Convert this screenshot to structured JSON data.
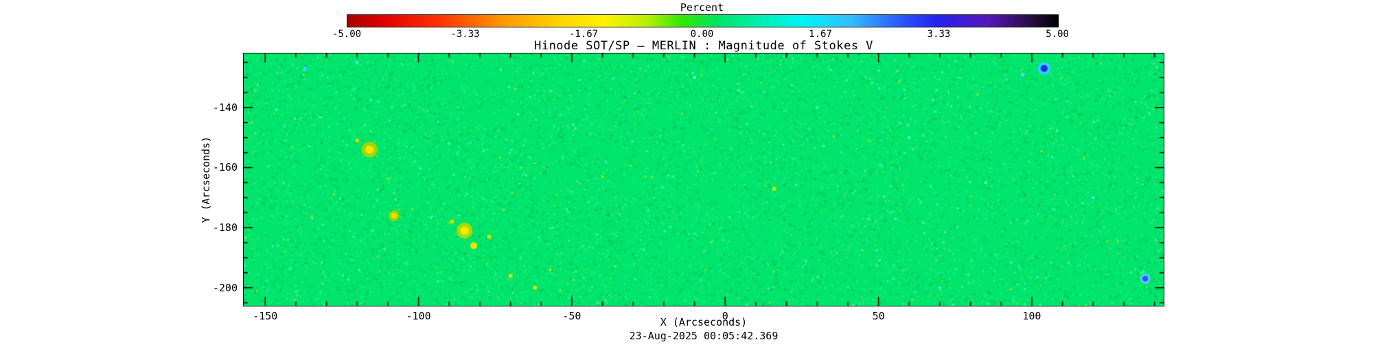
{
  "footer": {
    "timestamp": "23-Aug-2025 00:05:42.369"
  },
  "chart_data": {
    "type": "heatmap",
    "title": "Hinode SOT/SP — MERLIN : Magnitude of Stokes V",
    "xlabel": "X (Arcseconds)",
    "ylabel": "Y (Arcseconds)",
    "xlim": [
      -157,
      143
    ],
    "ylim": [
      -206,
      -122
    ],
    "x_ticks": [
      -150,
      -100,
      -50,
      0,
      50,
      100
    ],
    "y_ticks": [
      -140,
      -160,
      -180,
      -200
    ],
    "x_minor_step": 10,
    "y_minor_step": 5,
    "grid": false,
    "legend": "none",
    "colorbar": {
      "label": "Percent",
      "min": -5.0,
      "max": 5.0,
      "ticks": [
        "-5.00",
        "-3.33",
        "-1.67",
        "0.00",
        "1.67",
        "3.33",
        "5.00"
      ],
      "position": "top",
      "gradient": [
        {
          "pos": 0.0,
          "color": "#aa0000"
        },
        {
          "pos": 0.05,
          "color": "#dd0000"
        },
        {
          "pos": 0.13,
          "color": "#ff3300"
        },
        {
          "pos": 0.22,
          "color": "#ff9900"
        },
        {
          "pos": 0.3,
          "color": "#ffd500"
        },
        {
          "pos": 0.36,
          "color": "#fff200"
        },
        {
          "pos": 0.42,
          "color": "#baf000"
        },
        {
          "pos": 0.47,
          "color": "#33e800"
        },
        {
          "pos": 0.52,
          "color": "#00e566"
        },
        {
          "pos": 0.58,
          "color": "#00efae"
        },
        {
          "pos": 0.64,
          "color": "#00f5f5"
        },
        {
          "pos": 0.71,
          "color": "#33bbff"
        },
        {
          "pos": 0.78,
          "color": "#2b55ff"
        },
        {
          "pos": 0.83,
          "color": "#2222ee"
        },
        {
          "pos": 0.9,
          "color": "#5518b8"
        },
        {
          "pos": 0.96,
          "color": "#2a0d45"
        },
        {
          "pos": 1.0,
          "color": "#000000"
        }
      ]
    },
    "base_value_percent": 0.0,
    "base_color": "#00e56b",
    "noise_palette": [
      {
        "color": "rgba(0,198,84,0.50)",
        "weight": 0.4
      },
      {
        "color": "rgba(46,243,139,0.50)",
        "weight": 0.33
      },
      {
        "color": "rgba(0,166,96,0.40)",
        "weight": 0.12
      },
      {
        "color": "rgba(130,228,60,0.35)",
        "weight": 0.08
      },
      {
        "color": "rgba(110,250,225,0.50)",
        "weight": 0.05
      },
      {
        "color": "rgba(255,238,0,0.40)",
        "weight": 0.02
      }
    ],
    "features": [
      {
        "x": -116,
        "y": -154,
        "r": 6,
        "color": "#f5e400",
        "halo": "#9ed800"
      },
      {
        "x": -120,
        "y": -151,
        "r": 3,
        "color": "#cfe300"
      },
      {
        "x": -108,
        "y": -176,
        "r": 4,
        "color": "#e8e000",
        "halo": "#9ed800"
      },
      {
        "x": -85,
        "y": -181,
        "r": 6,
        "color": "#f7ea00",
        "halo": "#aadc00"
      },
      {
        "x": -82,
        "y": -186,
        "r": 5,
        "color": "#f0e400"
      },
      {
        "x": -77,
        "y": -183,
        "r": 3,
        "color": "#d8e000"
      },
      {
        "x": -89,
        "y": -178,
        "r": 3,
        "color": "#cfe000"
      },
      {
        "x": -70,
        "y": -196,
        "r": 3,
        "color": "#dce300"
      },
      {
        "x": -62,
        "y": -200,
        "r": 3,
        "color": "#e4e600"
      },
      {
        "x": -57,
        "y": -194,
        "r": 2,
        "color": "#c8e000"
      },
      {
        "x": 16,
        "y": -167,
        "r": 3,
        "color": "#c8e800"
      },
      {
        "x": -40,
        "y": -163,
        "r": 2,
        "color": "#bae000"
      },
      {
        "x": 104,
        "y": -127,
        "r": 5,
        "color": "#1133ee",
        "halo": "#33ccff"
      },
      {
        "x": 97,
        "y": -129,
        "r": 3,
        "color": "#44ddff"
      },
      {
        "x": -137,
        "y": -127,
        "r": 3,
        "color": "#44ccff"
      },
      {
        "x": -120,
        "y": -125,
        "r": 2,
        "color": "#66e8ff"
      },
      {
        "x": 137,
        "y": -197,
        "r": 4,
        "color": "#2255ff",
        "halo": "#55ccee"
      },
      {
        "x": 60,
        "y": -150,
        "r": 2,
        "color": "#66ffe0"
      },
      {
        "x": 85,
        "y": -165,
        "r": 2,
        "color": "#66ffe0"
      },
      {
        "x": 30,
        "y": -140,
        "r": 2,
        "color": "#55f0d0"
      },
      {
        "x": -10,
        "y": -130,
        "r": 2,
        "color": "#88ffd8"
      },
      {
        "x": 120,
        "y": -170,
        "r": 2,
        "color": "#55e8ff"
      },
      {
        "x": 70,
        "y": -200,
        "r": 2,
        "color": "#55e8ff"
      }
    ]
  }
}
